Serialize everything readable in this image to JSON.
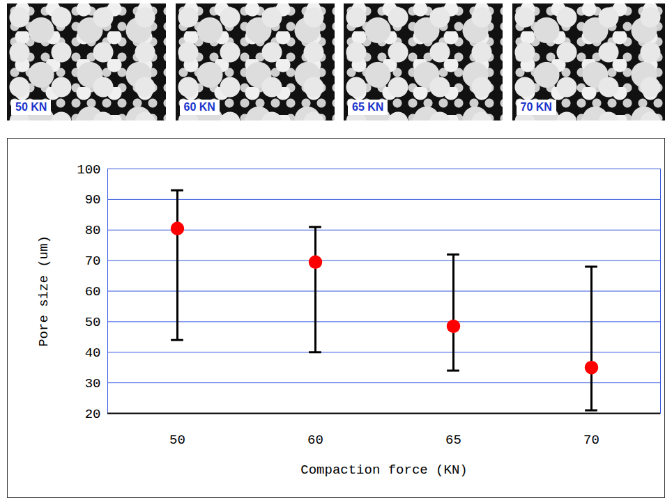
{
  "image_panels": [
    "50 KN",
    "60 KN",
    "65 KN",
    "70 KN"
  ],
  "chart_data": {
    "type": "scatter",
    "x_label": "Compaction force (KN)",
    "y_label": "Pore size (um)",
    "categories": [
      50,
      60,
      65,
      70
    ],
    "values": [
      80.5,
      69.5,
      48.5,
      35
    ],
    "error_bars": {
      "low": [
        44,
        40,
        34,
        21
      ],
      "high": [
        93,
        81,
        72,
        68
      ]
    },
    "color": "#ff0000",
    "marker": "circle",
    "ylim": [
      20,
      100
    ],
    "yticks": [
      20,
      30,
      40,
      50,
      60,
      70,
      80,
      90,
      100
    ],
    "grid": true
  }
}
